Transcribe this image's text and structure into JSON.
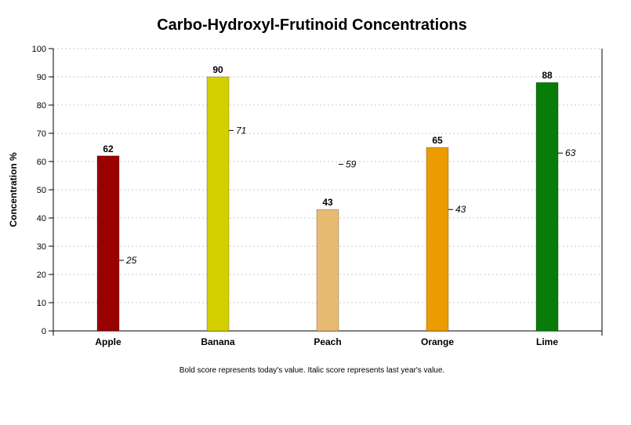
{
  "chart_data": {
    "type": "bar",
    "title": "Carbo-Hydroxyl-Frutinoid Concentrations",
    "ylabel": "Concentration %",
    "xlabel": "",
    "ylim": [
      0,
      100
    ],
    "yticks": [
      0,
      10,
      20,
      30,
      40,
      50,
      60,
      70,
      80,
      90,
      100
    ],
    "grid": "horizontal dotted",
    "categories": [
      "Apple",
      "Banana",
      "Peach",
      "Orange",
      "Lime"
    ],
    "series": [
      {
        "values": [
          62,
          90,
          43,
          65,
          88
        ]
      },
      {
        "values": [
          25,
          71,
          59,
          43,
          63
        ]
      }
    ],
    "colors": [
      "#990000",
      "#d4d000",
      "#e8bb72",
      "#ec9b00",
      "#087c08"
    ],
    "note": "Bold score represents today's value. Italic score represents last year's value."
  }
}
